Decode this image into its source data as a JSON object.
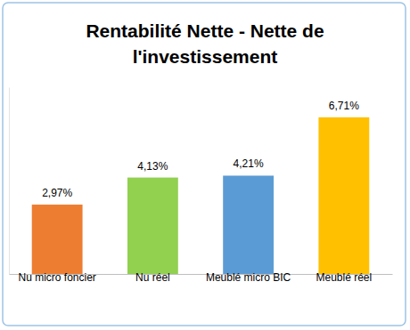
{
  "chart_data": {
    "type": "bar",
    "title": "Rentabilité Nette - Nette de l'investissement",
    "categories": [
      "Nu micro foncier",
      "Nu réel",
      "Meublé micro BIC",
      "Meublé réel"
    ],
    "values": [
      2.97,
      4.13,
      4.21,
      6.71
    ],
    "value_labels": [
      "2,97%",
      "4,13%",
      "4,21%",
      "6,71%"
    ],
    "colors": [
      "#ed7d31",
      "#92d050",
      "#5b9bd5",
      "#ffc000"
    ],
    "ylim": [
      0,
      8
    ],
    "yticks": [],
    "grid": false,
    "data_labels": true,
    "tick_labels": "x"
  }
}
